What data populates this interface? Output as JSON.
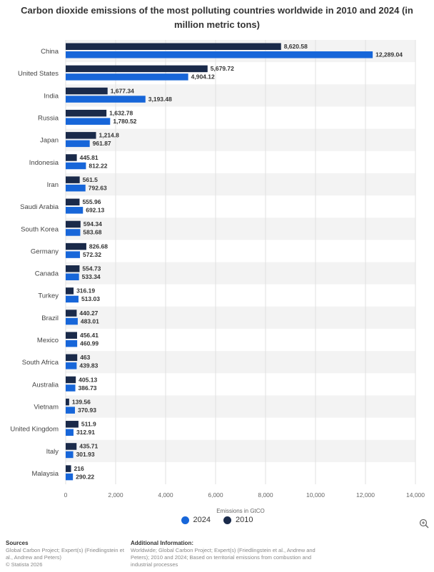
{
  "chart_data": {
    "type": "bar",
    "orientation": "horizontal",
    "title": "Carbon dioxide emissions of the most polluting countries worldwide in 2010 and 2024 (in million metric tons)",
    "xlabel": "Emissions in GtCO",
    "ylabel": "",
    "xlim": [
      0,
      14000
    ],
    "xticks": [
      0,
      2000,
      4000,
      6000,
      8000,
      10000,
      12000,
      14000
    ],
    "xtick_labels": [
      "0",
      "2,000",
      "4,000",
      "6,000",
      "8,000",
      "10,000",
      "12,000",
      "14,000"
    ],
    "categories": [
      "China",
      "United States",
      "India",
      "Russia",
      "Japan",
      "Indonesia",
      "Iran",
      "Saudi Arabia",
      "South Korea",
      "Germany",
      "Canada",
      "Turkey",
      "Brazil",
      "Mexico",
      "South Africa",
      "Australia",
      "Vietnam",
      "United Kingdom",
      "Italy",
      "Malaysia"
    ],
    "series": [
      {
        "name": "2010",
        "color": "#1a2a4a",
        "values": [
          8620.58,
          5679.72,
          1677.34,
          1632.78,
          1214.8,
          445.81,
          561.5,
          555.96,
          594.34,
          826.68,
          554.73,
          316.19,
          440.27,
          456.41,
          463,
          405.13,
          139.56,
          511.9,
          435.71,
          216
        ],
        "labels": [
          "8,620.58",
          "5,679.72",
          "1,677.34",
          "1,632.78",
          "1,214.8",
          "445.81",
          "561.5",
          "555.96",
          "594.34",
          "826.68",
          "554.73",
          "316.19",
          "440.27",
          "456.41",
          "463",
          "405.13",
          "139.56",
          "511.9",
          "435.71",
          "216"
        ]
      },
      {
        "name": "2024",
        "color": "#1766d9",
        "values": [
          12289.04,
          4904.12,
          3193.48,
          1780.52,
          961.87,
          812.22,
          792.63,
          692.13,
          583.68,
          572.32,
          533.34,
          513.03,
          483.01,
          460.99,
          439.83,
          386.73,
          370.93,
          312.91,
          301.93,
          290.22
        ],
        "labels": [
          "12,289.04",
          "4,904.12",
          "3,193.48",
          "1,780.52",
          "961.87",
          "812.22",
          "792.63",
          "692.13",
          "583.68",
          "572.32",
          "533.34",
          "513.03",
          "483.01",
          "460.99",
          "439.83",
          "386.73",
          "370.93",
          "312.91",
          "301.93",
          "290.22"
        ]
      }
    ],
    "legend": [
      {
        "label": "2024",
        "color": "#1766d9"
      },
      {
        "label": "2010",
        "color": "#1a2a4a"
      }
    ],
    "grid": true,
    "legend_position": "bottom-center"
  },
  "footer": {
    "sources_title": "Sources",
    "sources_text": "Global Carbon Project; Expert(s) (Friedlingstein et al., Andrew and Peters)",
    "copyright": "© Statista 2026",
    "additional_title": "Additional Information:",
    "additional_text": "Worldwide; Global Carbon Project; Expert(s) (Friedlingstein et al., Andrew and Peters); 2010 and 2024; Based on territorial emissions from combustion and industrial processes"
  },
  "icons": {
    "zoom": "zoom-in-icon"
  }
}
